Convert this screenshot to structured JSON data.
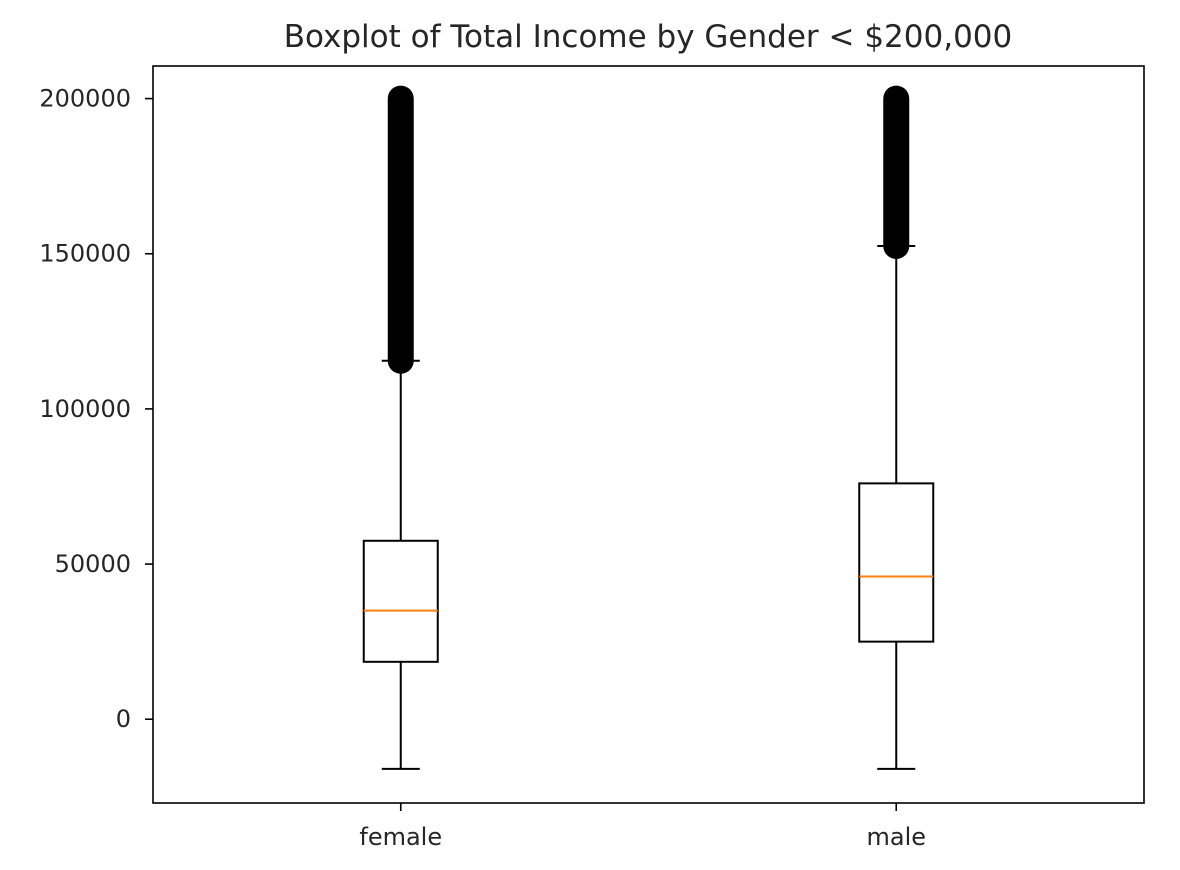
{
  "chart_data": {
    "type": "box",
    "title": "Boxplot of Total Income by Gender < $200,000",
    "xlabel": "",
    "ylabel": "",
    "categories": [
      "female",
      "male"
    ],
    "ylim": [
      -27000,
      210500
    ],
    "yticks": [
      0,
      50000,
      100000,
      150000,
      200000
    ],
    "ytick_labels": [
      "0",
      "50000",
      "100000",
      "150000",
      "200000"
    ],
    "grid": false,
    "boxes": [
      {
        "name": "female",
        "whisker_low": -16000,
        "q1": 18500,
        "median": 35000,
        "q3": 57500,
        "whisker_high": 115500,
        "outlier_range": [
          115500,
          200000
        ]
      },
      {
        "name": "male",
        "whisker_low": -16000,
        "q1": 25000,
        "median": 46000,
        "q3": 76000,
        "whisker_high": 152500,
        "outlier_range": [
          152500,
          200000
        ]
      }
    ],
    "colors": {
      "box": "#000000",
      "median": "#ff7f0e",
      "outliers": "#000000",
      "axes": "#000000"
    }
  }
}
